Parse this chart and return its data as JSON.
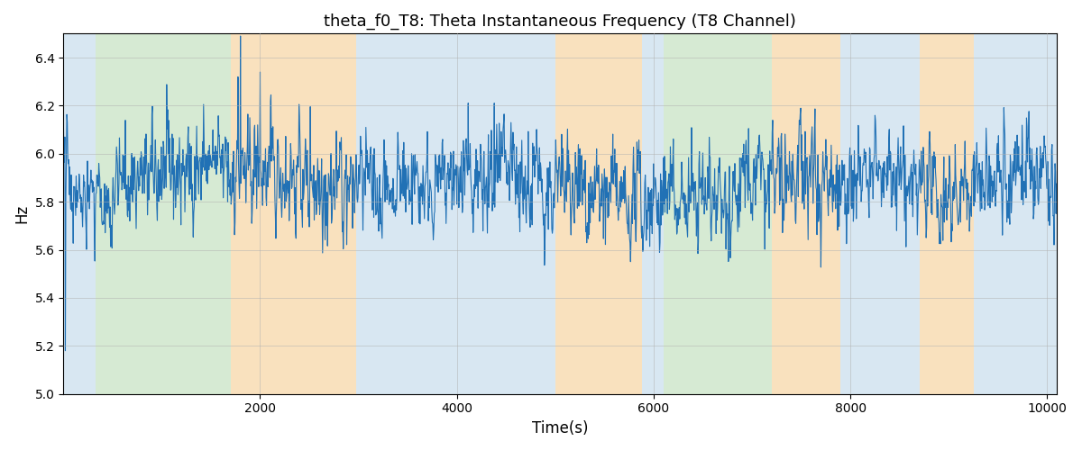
{
  "title": "theta_f0_T8: Theta Instantaneous Frequency (T8 Channel)",
  "xlabel": "Time(s)",
  "ylabel": "Hz",
  "xlim": [
    0,
    10100
  ],
  "ylim": [
    5.0,
    6.5
  ],
  "line_color": "#2171b5",
  "line_width": 0.8,
  "background_color": "#ffffff",
  "figsize": [
    12,
    5
  ],
  "dpi": 100,
  "yticks": [
    5.0,
    5.2,
    5.4,
    5.6,
    5.8,
    6.0,
    6.2,
    6.4
  ],
  "xticks": [
    2000,
    4000,
    6000,
    8000,
    10000
  ],
  "regions": [
    {
      "xmin": 0,
      "xmax": 330,
      "color": "#b8d4e8",
      "alpha": 0.55
    },
    {
      "xmin": 330,
      "xmax": 1700,
      "color": "#b5d9b0",
      "alpha": 0.55
    },
    {
      "xmin": 1700,
      "xmax": 2980,
      "color": "#f5c98a",
      "alpha": 0.55
    },
    {
      "xmin": 2980,
      "xmax": 4000,
      "color": "#b8d4e8",
      "alpha": 0.55
    },
    {
      "xmin": 4000,
      "xmax": 4300,
      "color": "#b8d4e8",
      "alpha": 0.55
    },
    {
      "xmin": 4300,
      "xmax": 5000,
      "color": "#b8d4e8",
      "alpha": 0.55
    },
    {
      "xmin": 5000,
      "xmax": 5880,
      "color": "#f5c98a",
      "alpha": 0.55
    },
    {
      "xmin": 5880,
      "xmax": 6100,
      "color": "#b8d4e8",
      "alpha": 0.55
    },
    {
      "xmin": 6100,
      "xmax": 7200,
      "color": "#b5d9b0",
      "alpha": 0.55
    },
    {
      "xmin": 7200,
      "xmax": 7900,
      "color": "#f5c98a",
      "alpha": 0.55
    },
    {
      "xmin": 7900,
      "xmax": 8700,
      "color": "#b8d4e8",
      "alpha": 0.55
    },
    {
      "xmin": 8700,
      "xmax": 9250,
      "color": "#f5c98a",
      "alpha": 0.55
    },
    {
      "xmin": 9250,
      "xmax": 10100,
      "color": "#b8d4e8",
      "alpha": 0.55
    }
  ],
  "seed": 42,
  "n_points": 2020,
  "sample_rate": 5
}
